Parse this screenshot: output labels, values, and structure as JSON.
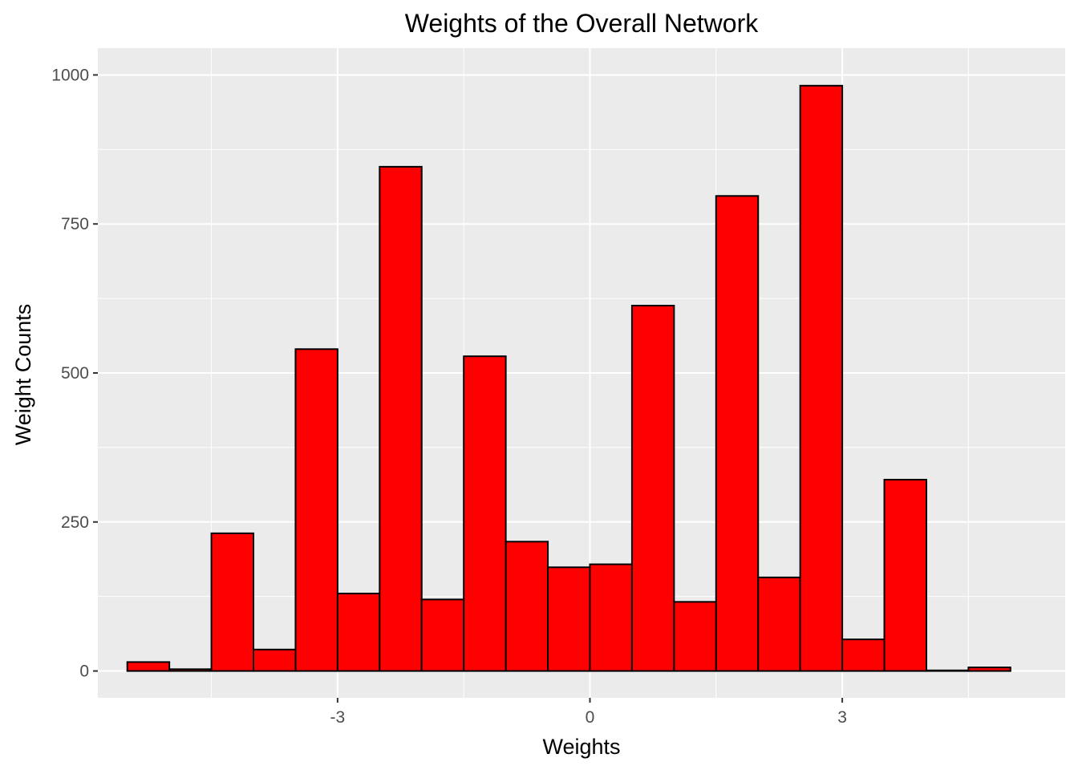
{
  "chart_data": {
    "type": "bar",
    "title": "Weights of the Overall Network",
    "xlabel": "Weights",
    "ylabel": "Weight Counts",
    "xlim": [
      -5.85,
      5.65
    ],
    "ylim": [
      -45,
      1045
    ],
    "x_ticks": [
      -3,
      0,
      3
    ],
    "x_tick_labels": [
      "-3",
      "0",
      "3"
    ],
    "y_ticks": [
      0,
      250,
      500,
      750,
      1000
    ],
    "y_tick_labels": [
      "0",
      "250",
      "500",
      "750",
      "1000"
    ],
    "x_minor": [
      -4.5,
      -1.5,
      1.5,
      4.5
    ],
    "y_minor": [
      125,
      375,
      625,
      875
    ],
    "bin_width": 0.5,
    "bins": [
      {
        "x": -5.25,
        "count": 15
      },
      {
        "x": -4.75,
        "count": 3
      },
      {
        "x": -4.25,
        "count": 231
      },
      {
        "x": -3.75,
        "count": 36
      },
      {
        "x": -3.25,
        "count": 540
      },
      {
        "x": -2.75,
        "count": 130
      },
      {
        "x": -2.25,
        "count": 846
      },
      {
        "x": -1.75,
        "count": 120
      },
      {
        "x": -1.25,
        "count": 528
      },
      {
        "x": -0.75,
        "count": 217
      },
      {
        "x": -0.25,
        "count": 174
      },
      {
        "x": 0.25,
        "count": 179
      },
      {
        "x": 0.75,
        "count": 613
      },
      {
        "x": 1.25,
        "count": 116
      },
      {
        "x": 1.75,
        "count": 797
      },
      {
        "x": 2.25,
        "count": 157
      },
      {
        "x": 2.75,
        "count": 982
      },
      {
        "x": 3.25,
        "count": 53
      },
      {
        "x": 3.75,
        "count": 321
      },
      {
        "x": 4.25,
        "count": 1
      },
      {
        "x": 4.75,
        "count": 6
      }
    ],
    "fill_color": "#ff0000",
    "outline_color": "#000000",
    "panel_color": "#ebebeb",
    "grid": true
  }
}
